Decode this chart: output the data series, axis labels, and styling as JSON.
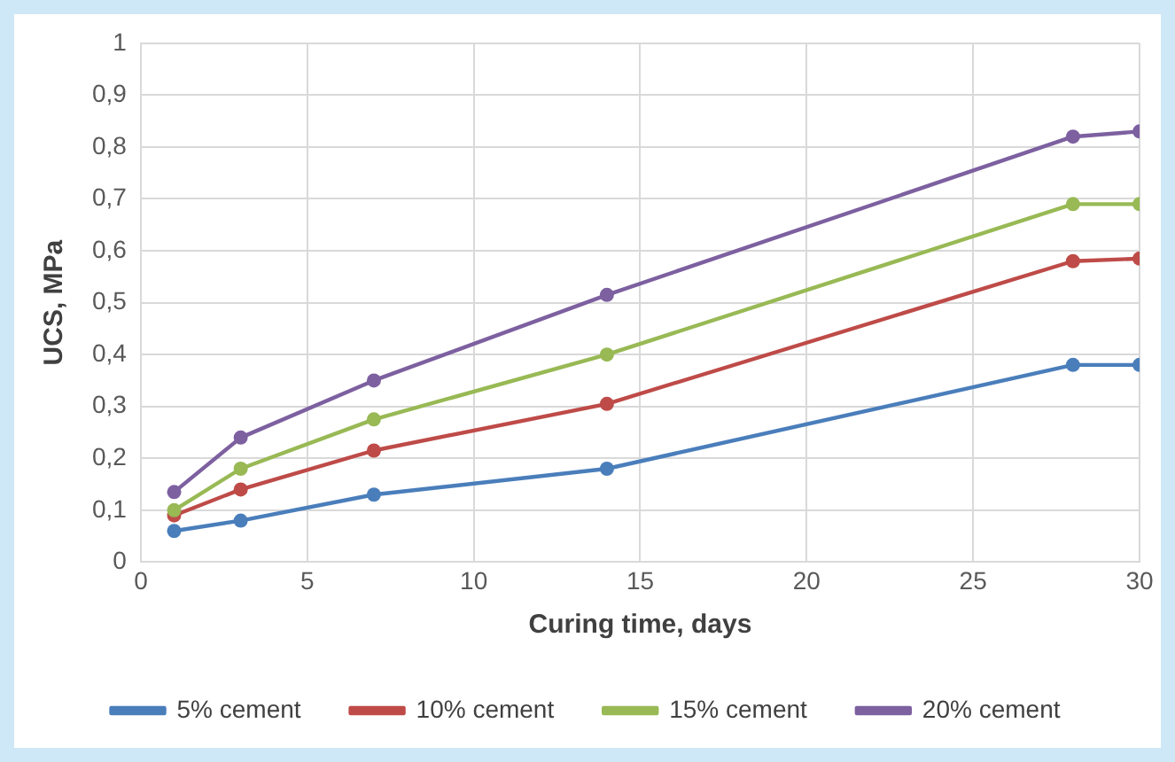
{
  "chart_data": {
    "type": "line",
    "xlabel": "Curing time, days",
    "ylabel": "UCS, MPa",
    "x": [
      1,
      3,
      7,
      14,
      28,
      30
    ],
    "series": [
      {
        "name": "5% cement",
        "color": "#4a7ebb",
        "values": [
          0.06,
          0.08,
          0.13,
          0.18,
          0.38,
          0.38
        ]
      },
      {
        "name": "10% cement",
        "color": "#be4b48",
        "values": [
          0.09,
          0.14,
          0.215,
          0.305,
          0.58,
          0.585
        ]
      },
      {
        "name": "15% cement",
        "color": "#98b954",
        "values": [
          0.1,
          0.18,
          0.275,
          0.4,
          0.69,
          0.69
        ]
      },
      {
        "name": "20% cement",
        "color": "#7d60a0",
        "values": [
          0.135,
          0.24,
          0.35,
          0.515,
          0.82,
          0.83
        ]
      }
    ],
    "xlim": [
      0,
      30
    ],
    "xticks": [
      0,
      5,
      10,
      15,
      20,
      25,
      30
    ],
    "ylim": [
      0,
      1
    ],
    "yticks": [
      0,
      {
        "value": 0.1,
        "label": "0,1"
      },
      {
        "value": 0.2,
        "label": "0,2"
      },
      {
        "value": 0.3,
        "label": "0,3"
      },
      {
        "value": 0.4,
        "label": "0,4"
      },
      {
        "value": 0.5,
        "label": "0,5"
      },
      {
        "value": 0.6,
        "label": "0,6"
      },
      {
        "value": 0.7,
        "label": "0,7"
      },
      {
        "value": 0.8,
        "label": "0,8"
      },
      {
        "value": 0.9,
        "label": "0,9"
      },
      1
    ],
    "grid": true,
    "legend": "bottom",
    "marker": "circle",
    "line_style": "solid"
  }
}
